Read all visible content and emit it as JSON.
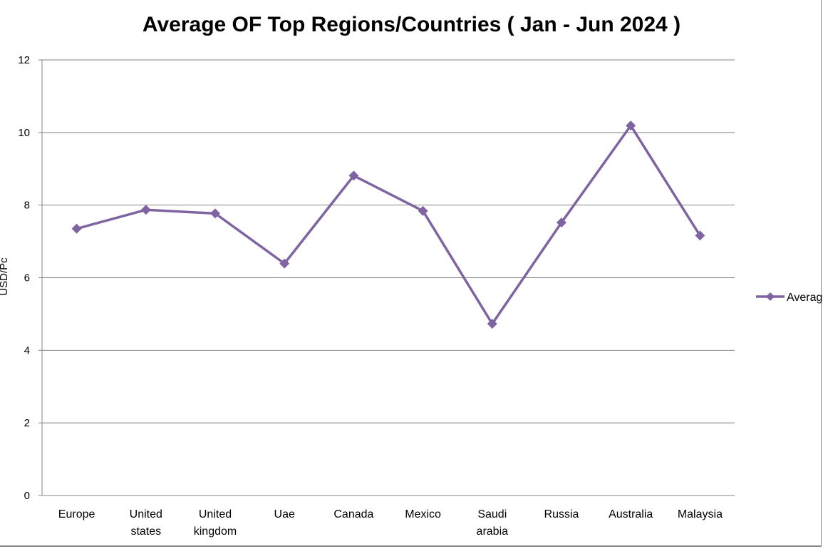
{
  "chart_data": {
    "type": "line",
    "title": "Average OF Top Regions/Countries ( Jan - Jun 2024 )",
    "ylabel": "USD/Pc",
    "xlabel": "",
    "ylim": [
      0,
      12
    ],
    "yticks": [
      "0",
      "2",
      "4",
      "6",
      "8",
      "10",
      "12"
    ],
    "grid": "horizontal",
    "legend_position": "right",
    "categories": [
      [
        "Europe"
      ],
      [
        "United",
        "states"
      ],
      [
        "United",
        "kingdom"
      ],
      [
        "Uae"
      ],
      [
        "Canada"
      ],
      [
        "Mexico"
      ],
      [
        "Saudi",
        "arabia"
      ],
      [
        "Russia"
      ],
      [
        "Australia"
      ],
      [
        "Malaysia"
      ]
    ],
    "series": [
      {
        "name": "Average",
        "color": "#8064A2",
        "marker": "diamond",
        "values": [
          7.35,
          7.87,
          7.77,
          6.39,
          8.81,
          7.84,
          4.73,
          7.52,
          10.19,
          7.16
        ]
      }
    ]
  }
}
